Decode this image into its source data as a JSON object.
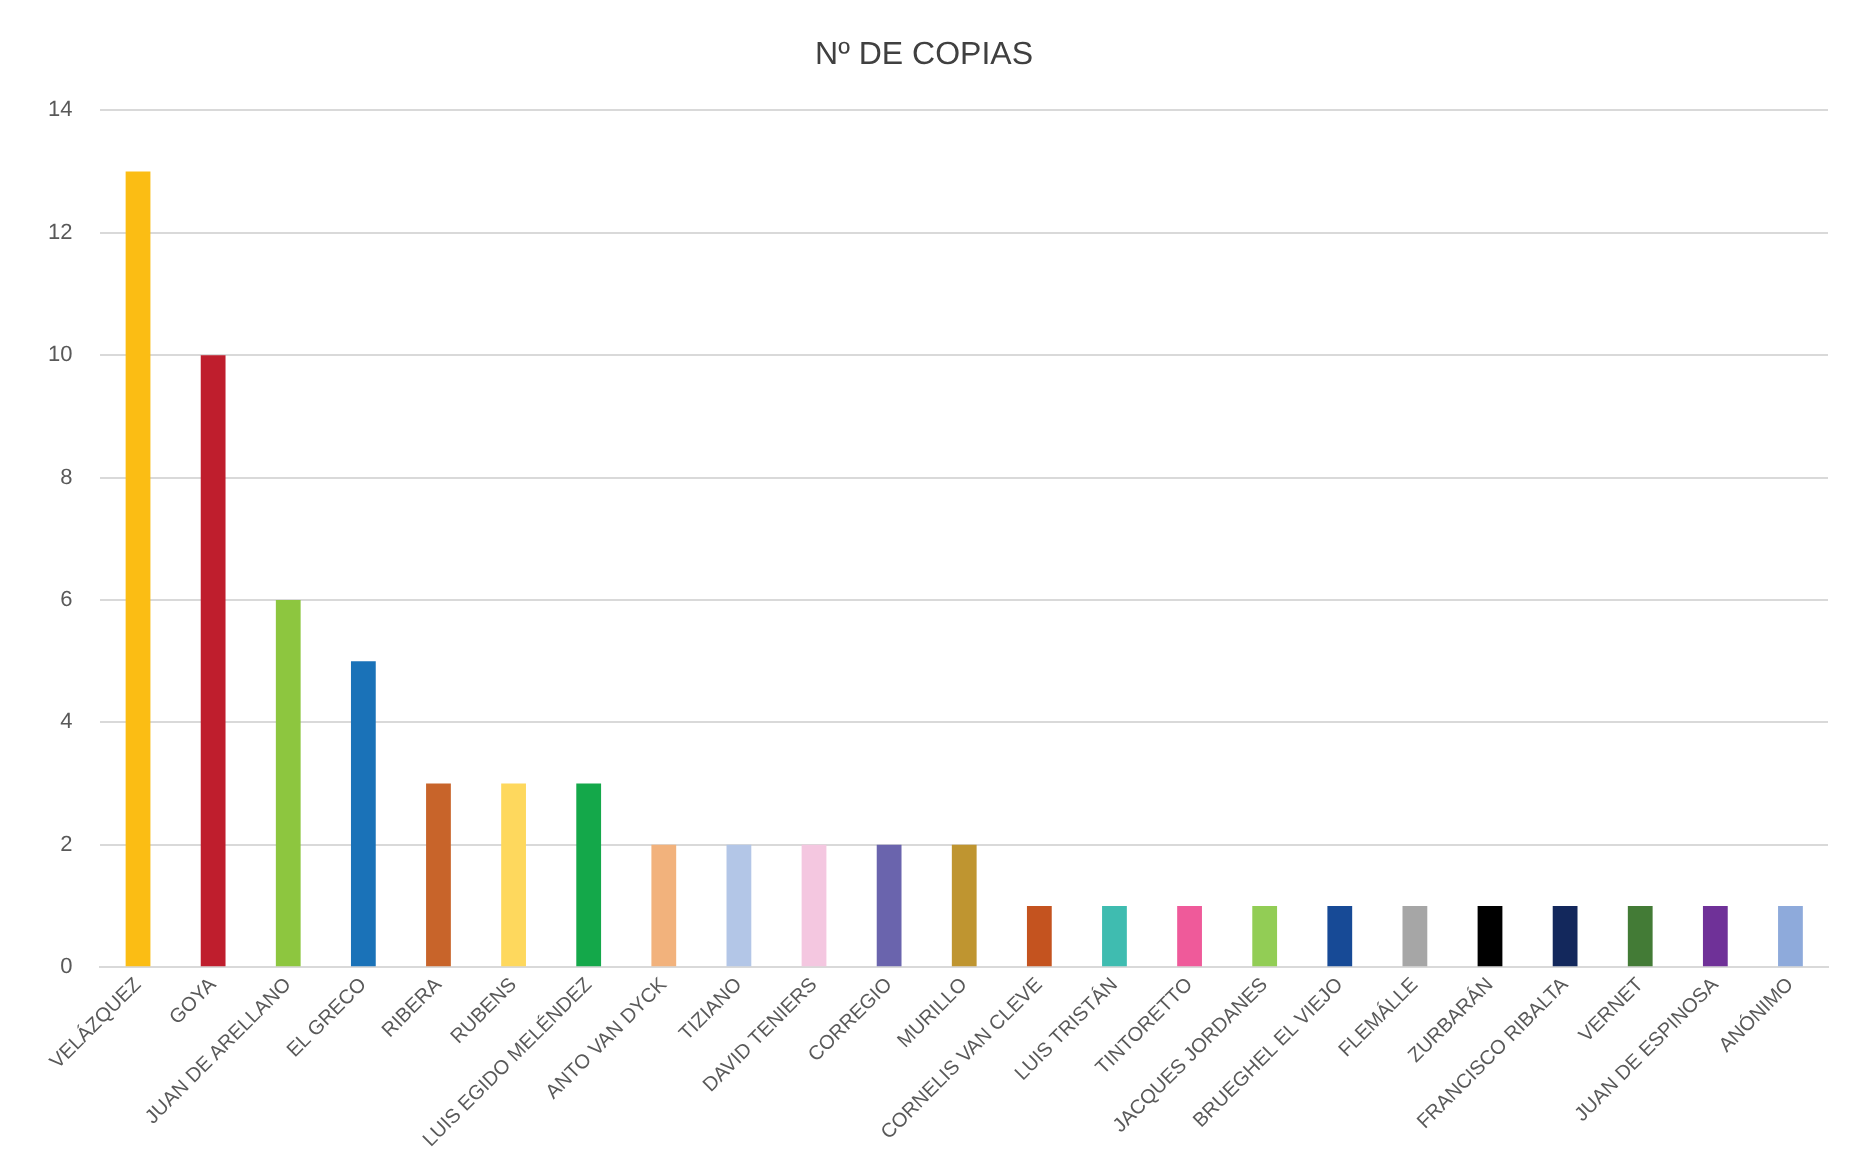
{
  "chart_data": {
    "type": "bar",
    "title": "Nº DE COPIAS",
    "categories": [
      "VELÁZQUEZ",
      "GOYA",
      "JUAN DE ARELLANO",
      "EL GRECO",
      "RIBERA",
      "RUBENS",
      "LUIS EGIDO MELÉNDEZ",
      "ANTO VAN DYCK",
      "TIZIANO",
      "DAVID TENIERS",
      "CORREGIO",
      "MURILLO",
      "CORNELIS VAN CLEVE",
      "LUIS TRISTÁN",
      "TINTORETTO",
      "JACQUES JORDANES",
      "BRUEGHEL EL VIEJO",
      "FLEMÁLLE",
      "ZURBARÁN",
      "FRANCISCO RIBALTA",
      "VERNET",
      "JUAN DE ESPINOSA",
      "ANÓNIMO"
    ],
    "values": [
      13,
      10,
      6,
      5,
      3,
      3,
      3,
      2,
      2,
      2,
      2,
      2,
      1,
      1,
      1,
      1,
      1,
      1,
      1,
      1,
      1,
      1,
      1
    ],
    "colors": [
      "#fbbd14",
      "#bf1e2d",
      "#8dc63f",
      "#1a72b8",
      "#c8642a",
      "#fed85d",
      "#14a84a",
      "#f2b27c",
      "#b3c6e7",
      "#f4c7e0",
      "#6a64ad",
      "#bf9530",
      "#c4531f",
      "#3fbcb0",
      "#ef5a9a",
      "#92cd55",
      "#174a96",
      "#a6a6a6",
      "#000000",
      "#13285c",
      "#437b36",
      "#6f3198",
      "#8eaadb"
    ],
    "ylim": [
      0,
      14
    ],
    "yticks": [
      0,
      2,
      4,
      6,
      8,
      10,
      12,
      14
    ],
    "grid": "y"
  }
}
